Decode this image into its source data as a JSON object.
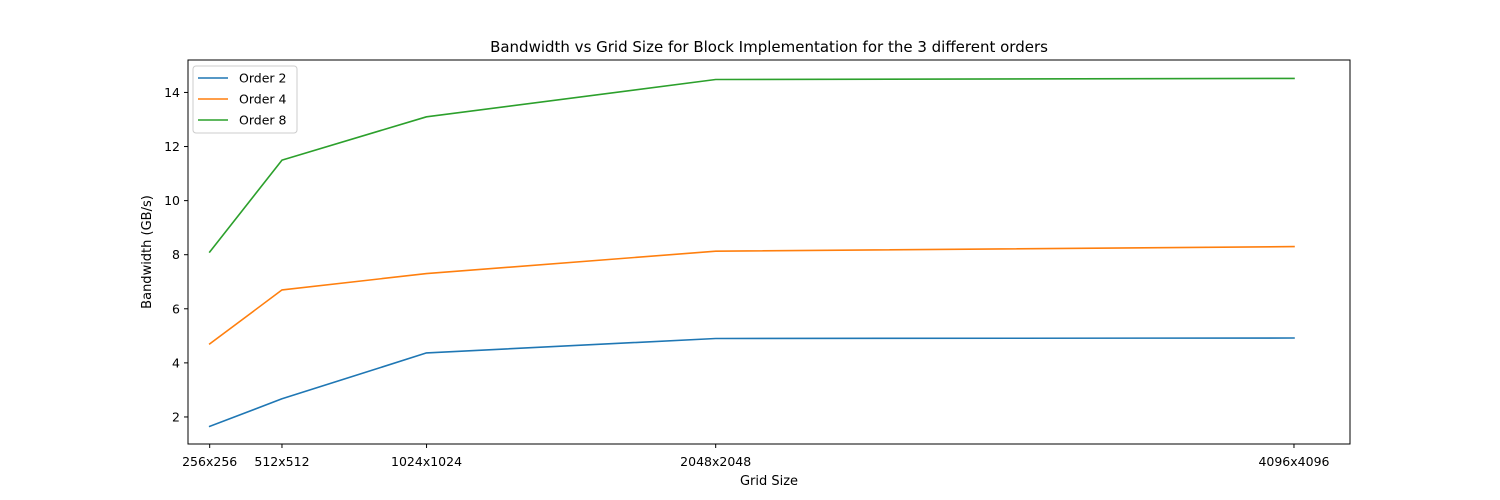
{
  "chart_data": {
    "type": "line",
    "title": "Bandwidth vs Grid Size for Block Implementation for the 3 different orders",
    "xlabel": "Grid Size",
    "ylabel": "Bandwidth (GB/s)",
    "x_numeric": [
      256,
      512,
      1024,
      2048,
      4096
    ],
    "categories": [
      "256x256",
      "512x512",
      "1024x1024",
      "2048x2048",
      "4096x4096"
    ],
    "xlim": [
      179.2,
      4294.4
    ],
    "ylim": [
      1.0,
      15.2
    ],
    "yticks": [
      2,
      4,
      6,
      8,
      10,
      12,
      14
    ],
    "grid": false,
    "legend_position": "top-left",
    "series": [
      {
        "name": "Order 2",
        "color": "#1f77b4",
        "values": [
          1.65,
          2.67,
          4.37,
          4.9,
          4.92
        ]
      },
      {
        "name": "Order 4",
        "color": "#ff7f0e",
        "values": [
          4.7,
          6.7,
          7.3,
          8.13,
          8.3
        ]
      },
      {
        "name": "Order 8",
        "color": "#2ca02c",
        "values": [
          8.1,
          11.5,
          13.1,
          14.48,
          14.52
        ]
      }
    ]
  }
}
